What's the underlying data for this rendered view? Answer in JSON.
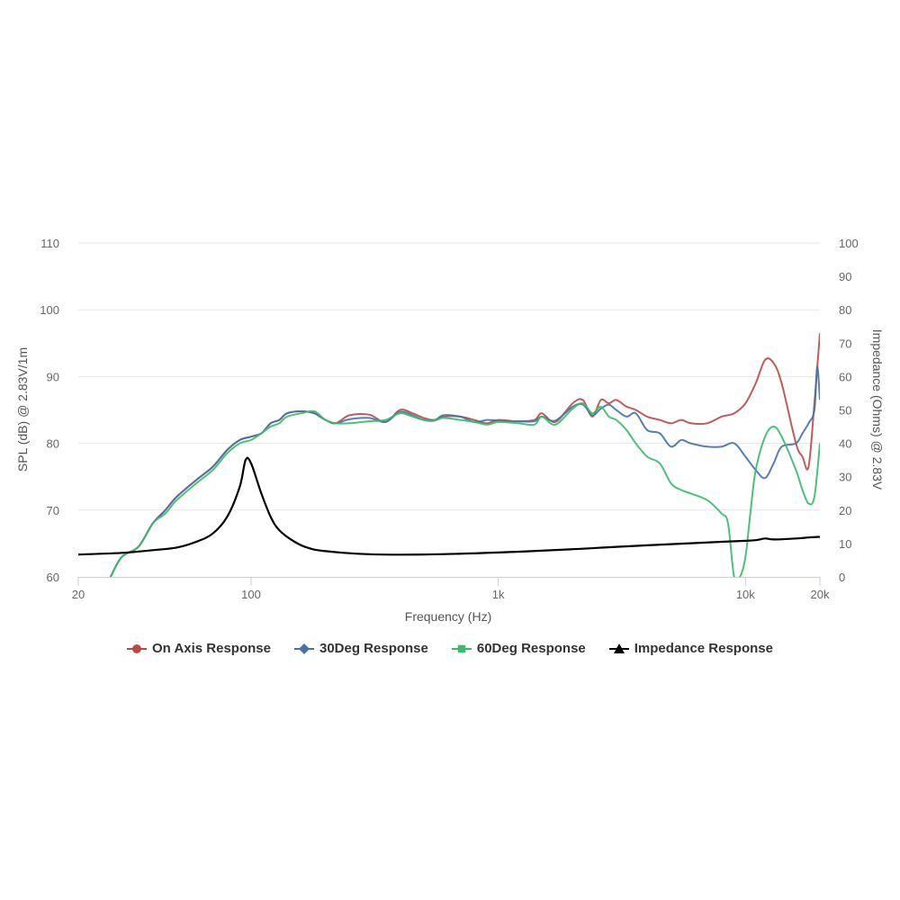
{
  "chart_data": {
    "type": "line",
    "xlabel": "Frequency (Hz)",
    "ylabel": "SPL (dB) @ 2.83V/1m",
    "y2label": "Impedance (Ohms) @ 2.83V",
    "xscale": "log",
    "xlim": [
      20,
      20000
    ],
    "ylim": [
      60,
      110
    ],
    "y2lim": [
      0,
      100
    ],
    "x_ticks": [
      {
        "value": 20,
        "label": "20"
      },
      {
        "value": 100,
        "label": "100"
      },
      {
        "value": 1000,
        "label": "1k"
      },
      {
        "value": 10000,
        "label": "10k"
      },
      {
        "value": 20000,
        "label": "20k"
      }
    ],
    "y_ticks": [
      60,
      70,
      80,
      90,
      100,
      110
    ],
    "y2_ticks": [
      0,
      10,
      20,
      30,
      40,
      50,
      60,
      70,
      80,
      90,
      100
    ],
    "grid": true,
    "legend_position": "bottom",
    "series": [
      {
        "name": "On Axis Response",
        "color": "#b94a48",
        "marker": "circle",
        "axis": "left",
        "points": [
          [
            27,
            60
          ],
          [
            30,
            63
          ],
          [
            35,
            64.5
          ],
          [
            40,
            68
          ],
          [
            45,
            70
          ],
          [
            50,
            72
          ],
          [
            60,
            74.5
          ],
          [
            70,
            76.5
          ],
          [
            80,
            79
          ],
          [
            90,
            80.5
          ],
          [
            100,
            81
          ],
          [
            110,
            81.5
          ],
          [
            120,
            83
          ],
          [
            130,
            83.5
          ],
          [
            140,
            84.5
          ],
          [
            160,
            84.8
          ],
          [
            180,
            84.5
          ],
          [
            200,
            83.5
          ],
          [
            220,
            83
          ],
          [
            250,
            84.2
          ],
          [
            300,
            84.3
          ],
          [
            350,
            83.2
          ],
          [
            400,
            85
          ],
          [
            450,
            84.5
          ],
          [
            500,
            83.8
          ],
          [
            550,
            83.5
          ],
          [
            600,
            84
          ],
          [
            700,
            84
          ],
          [
            800,
            83.5
          ],
          [
            900,
            83
          ],
          [
            1000,
            83.5
          ],
          [
            1200,
            83.3
          ],
          [
            1400,
            83.5
          ],
          [
            1500,
            84.5
          ],
          [
            1700,
            83.2
          ],
          [
            2000,
            86
          ],
          [
            2200,
            86.5
          ],
          [
            2400,
            84
          ],
          [
            2600,
            86.5
          ],
          [
            2800,
            86
          ],
          [
            3000,
            86.5
          ],
          [
            3300,
            85.5
          ],
          [
            3600,
            85
          ],
          [
            4000,
            84
          ],
          [
            4500,
            83.5
          ],
          [
            5000,
            83
          ],
          [
            5500,
            83.5
          ],
          [
            6000,
            83
          ],
          [
            7000,
            83
          ],
          [
            8000,
            84
          ],
          [
            9000,
            84.5
          ],
          [
            10000,
            86
          ],
          [
            11000,
            89
          ],
          [
            12000,
            92.5
          ],
          [
            13000,
            92
          ],
          [
            14000,
            89
          ],
          [
            16000,
            80
          ],
          [
            17000,
            78
          ],
          [
            18000,
            76.5
          ],
          [
            19000,
            86
          ],
          [
            20000,
            96.5
          ]
        ]
      },
      {
        "name": "30Deg Response",
        "color": "#4572a7",
        "marker": "diamond",
        "axis": "left",
        "points": [
          [
            27,
            60
          ],
          [
            30,
            63
          ],
          [
            35,
            64.5
          ],
          [
            40,
            68
          ],
          [
            45,
            70
          ],
          [
            50,
            72
          ],
          [
            60,
            74.5
          ],
          [
            70,
            76.5
          ],
          [
            80,
            79
          ],
          [
            90,
            80.5
          ],
          [
            100,
            81
          ],
          [
            110,
            81.5
          ],
          [
            120,
            83
          ],
          [
            130,
            83.5
          ],
          [
            140,
            84.5
          ],
          [
            160,
            84.8
          ],
          [
            180,
            84.5
          ],
          [
            200,
            83.5
          ],
          [
            220,
            83
          ],
          [
            250,
            83.6
          ],
          [
            300,
            83.8
          ],
          [
            350,
            83.2
          ],
          [
            400,
            84.7
          ],
          [
            450,
            84.2
          ],
          [
            500,
            83.5
          ],
          [
            550,
            83.4
          ],
          [
            600,
            84.2
          ],
          [
            700,
            84
          ],
          [
            800,
            83.2
          ],
          [
            900,
            83.5
          ],
          [
            1000,
            83.4
          ],
          [
            1200,
            83.3
          ],
          [
            1400,
            83.3
          ],
          [
            1500,
            84
          ],
          [
            1700,
            83.4
          ],
          [
            2000,
            85.5
          ],
          [
            2200,
            85.8
          ],
          [
            2400,
            84.2
          ],
          [
            2600,
            85.2
          ],
          [
            2800,
            85.8
          ],
          [
            3000,
            85
          ],
          [
            3300,
            84
          ],
          [
            3600,
            84.5
          ],
          [
            4000,
            82
          ],
          [
            4500,
            81.5
          ],
          [
            5000,
            79.5
          ],
          [
            5500,
            80.5
          ],
          [
            6000,
            80
          ],
          [
            7000,
            79.5
          ],
          [
            8000,
            79.5
          ],
          [
            9000,
            80
          ],
          [
            10000,
            78
          ],
          [
            11000,
            76
          ],
          [
            12000,
            74.8
          ],
          [
            13000,
            77
          ],
          [
            14000,
            79.5
          ],
          [
            16000,
            80
          ],
          [
            17000,
            81.5
          ],
          [
            18000,
            83
          ],
          [
            19000,
            85
          ],
          [
            19500,
            91.5
          ],
          [
            20000,
            86.5
          ]
        ]
      },
      {
        "name": "60Deg Response",
        "color": "#3cb96a",
        "marker": "square",
        "axis": "left",
        "points": [
          [
            27,
            60
          ],
          [
            30,
            63
          ],
          [
            35,
            64.5
          ],
          [
            40,
            68
          ],
          [
            45,
            69.5
          ],
          [
            50,
            71.5
          ],
          [
            60,
            74
          ],
          [
            70,
            76
          ],
          [
            80,
            78.5
          ],
          [
            90,
            80
          ],
          [
            100,
            80.5
          ],
          [
            110,
            81.5
          ],
          [
            120,
            82.5
          ],
          [
            130,
            83
          ],
          [
            140,
            84
          ],
          [
            160,
            84.5
          ],
          [
            180,
            84.8
          ],
          [
            200,
            83.5
          ],
          [
            220,
            83
          ],
          [
            250,
            83
          ],
          [
            300,
            83.3
          ],
          [
            350,
            83.5
          ],
          [
            400,
            84.5
          ],
          [
            450,
            84
          ],
          [
            500,
            83.5
          ],
          [
            550,
            83.4
          ],
          [
            600,
            83.8
          ],
          [
            700,
            83.5
          ],
          [
            800,
            83.2
          ],
          [
            900,
            82.8
          ],
          [
            1000,
            83.2
          ],
          [
            1200,
            83
          ],
          [
            1400,
            82.8
          ],
          [
            1500,
            84
          ],
          [
            1700,
            82.8
          ],
          [
            2000,
            85.2
          ],
          [
            2200,
            86
          ],
          [
            2400,
            84.5
          ],
          [
            2600,
            85.5
          ],
          [
            2800,
            84
          ],
          [
            3000,
            83.5
          ],
          [
            3300,
            82
          ],
          [
            3600,
            80
          ],
          [
            4000,
            78
          ],
          [
            4500,
            77
          ],
          [
            5000,
            74
          ],
          [
            5500,
            73
          ],
          [
            6000,
            72.5
          ],
          [
            7000,
            71.5
          ],
          [
            8000,
            69.5
          ],
          [
            8500,
            68
          ],
          [
            9000,
            60
          ],
          [
            9500,
            60
          ],
          [
            10000,
            63
          ],
          [
            10500,
            70
          ],
          [
            11000,
            76
          ],
          [
            12000,
            81
          ],
          [
            13000,
            82.5
          ],
          [
            14000,
            81
          ],
          [
            16000,
            76
          ],
          [
            17000,
            73
          ],
          [
            18000,
            71
          ],
          [
            19000,
            72
          ],
          [
            20000,
            80
          ]
        ]
      },
      {
        "name": "Impedance Response",
        "color": "#000000",
        "marker": "triangle",
        "axis": "right",
        "points": [
          [
            20,
            6.7
          ],
          [
            30,
            7.2
          ],
          [
            40,
            8
          ],
          [
            50,
            8.8
          ],
          [
            60,
            10.5
          ],
          [
            70,
            13
          ],
          [
            80,
            18
          ],
          [
            90,
            27
          ],
          [
            95,
            35
          ],
          [
            100,
            34
          ],
          [
            110,
            25
          ],
          [
            120,
            18
          ],
          [
            130,
            14
          ],
          [
            150,
            10.5
          ],
          [
            170,
            8.7
          ],
          [
            200,
            7.7
          ],
          [
            300,
            6.8
          ],
          [
            500,
            6.7
          ],
          [
            1000,
            7.3
          ],
          [
            2000,
            8.3
          ],
          [
            3000,
            9
          ],
          [
            5000,
            9.8
          ],
          [
            8000,
            10.5
          ],
          [
            10000,
            10.8
          ],
          [
            11000,
            11
          ],
          [
            12000,
            11.5
          ],
          [
            13000,
            11.2
          ],
          [
            16000,
            11.5
          ],
          [
            18000,
            11.8
          ],
          [
            20000,
            12
          ]
        ]
      }
    ]
  }
}
